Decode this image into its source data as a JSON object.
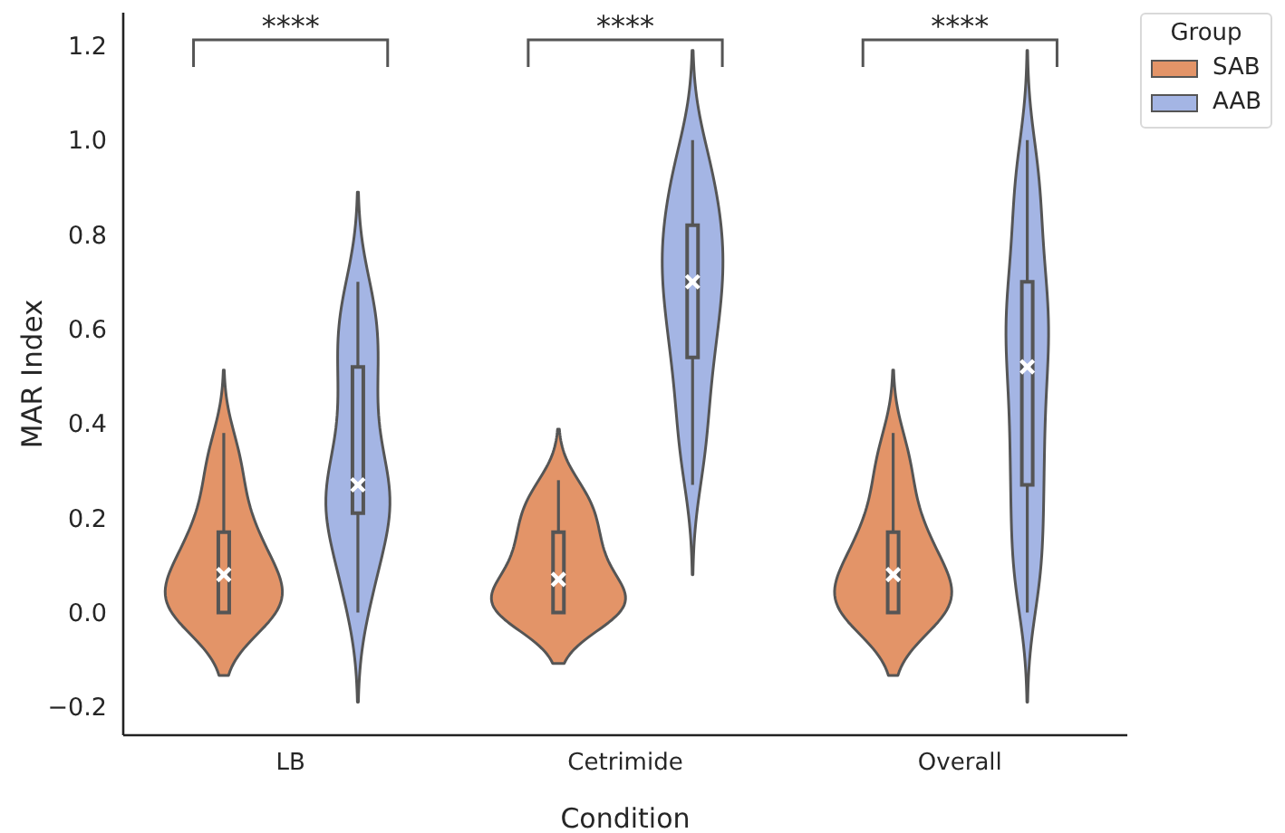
{
  "chart_data": {
    "type": "box",
    "xlabel": "Condition",
    "ylabel": "MAR Index",
    "legend_title": "Group",
    "categories": [
      "LB",
      "Cetrimide",
      "Overall"
    ],
    "series": [
      {
        "name": "SAB",
        "color": "#e39468",
        "boxes": [
          {
            "low": 0,
            "q1": 0,
            "median": 0.08,
            "q3": 0.17,
            "high": 0.38
          },
          {
            "low": 0,
            "q1": 0,
            "median": 0.07,
            "q3": 0.17,
            "high": 0.28
          },
          {
            "low": 0,
            "q1": 0,
            "median": 0.08,
            "q3": 0.17,
            "high": 0.38
          }
        ]
      },
      {
        "name": "AAB",
        "color": "#a4b5e4",
        "boxes": [
          {
            "low": 0,
            "q1": 0.21,
            "median": 0.27,
            "q3": 0.52,
            "high": 0.7
          },
          {
            "low": 0.27,
            "q1": 0.54,
            "median": 0.7,
            "q3": 0.82,
            "high": 1.0
          },
          {
            "low": 0,
            "q1": 0.27,
            "median": 0.52,
            "q3": 0.7,
            "high": 1.0
          }
        ]
      }
    ],
    "ylim": [
      -0.26,
      1.27
    ],
    "yticks": [
      {
        "value": -0.2,
        "label": "−0.2"
      },
      {
        "value": 0,
        "label": "0.0"
      },
      0.2,
      0.4,
      0.6,
      0.8,
      {
        "value": 1,
        "label": "1.0"
      },
      1.2
    ],
    "legend": "top right",
    "annotations": [
      "****",
      "****",
      "****"
    ]
  }
}
